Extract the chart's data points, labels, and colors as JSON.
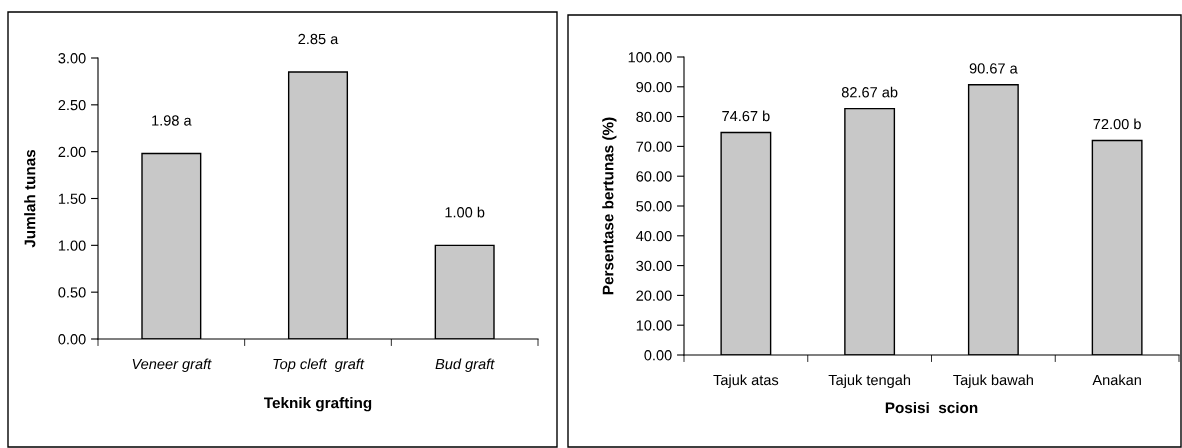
{
  "chart_data": [
    {
      "type": "bar",
      "xlabel": "Teknik grafting",
      "ylabel": "Jumlah tunas",
      "categories": [
        "Veneer graft",
        "Top cleft  graft",
        "Bud graft"
      ],
      "values": [
        1.98,
        2.85,
        1.0
      ],
      "value_labels": [
        "1.98 a",
        "2.85 a",
        "1.00 b"
      ],
      "color": "#c8c8c8",
      "ylim": [
        0,
        3
      ],
      "yticks": [
        {
          "value": 0,
          "label": "0.00"
        },
        {
          "value": 0.5,
          "label": "0.50"
        },
        {
          "value": 1,
          "label": "1.00"
        },
        {
          "value": 1.5,
          "label": "1.50"
        },
        {
          "value": 2,
          "label": "2.00"
        },
        {
          "value": 2.5,
          "label": "2.50"
        },
        {
          "value": 3,
          "label": "3.00"
        }
      ],
      "grid": false,
      "legend": false
    },
    {
      "type": "bar",
      "xlabel": "Posisi  scion",
      "ylabel": "Persentase bertunas (%)",
      "categories": [
        "Tajuk atas",
        "Tajuk tengah",
        "Tajuk bawah",
        "Anakan"
      ],
      "values": [
        74.67,
        82.67,
        90.67,
        72.0
      ],
      "value_labels": [
        "74.67 b",
        "82.67 ab",
        "90.67 a",
        "72.00 b"
      ],
      "color": "#c8c8c8",
      "ylim": [
        0,
        100
      ],
      "yticks": [
        {
          "value": 0,
          "label": "0.00"
        },
        {
          "value": 10,
          "label": "10.00"
        },
        {
          "value": 20,
          "label": "20.00"
        },
        {
          "value": 30,
          "label": "30.00"
        },
        {
          "value": 40,
          "label": "40.00"
        },
        {
          "value": 50,
          "label": "50.00"
        },
        {
          "value": 60,
          "label": "60.00"
        },
        {
          "value": 70,
          "label": "70.00"
        },
        {
          "value": 80,
          "label": "80.00"
        },
        {
          "value": 90,
          "label": "90.00"
        },
        {
          "value": 100,
          "label": "100.00"
        }
      ],
      "grid": false,
      "legend": false
    }
  ]
}
